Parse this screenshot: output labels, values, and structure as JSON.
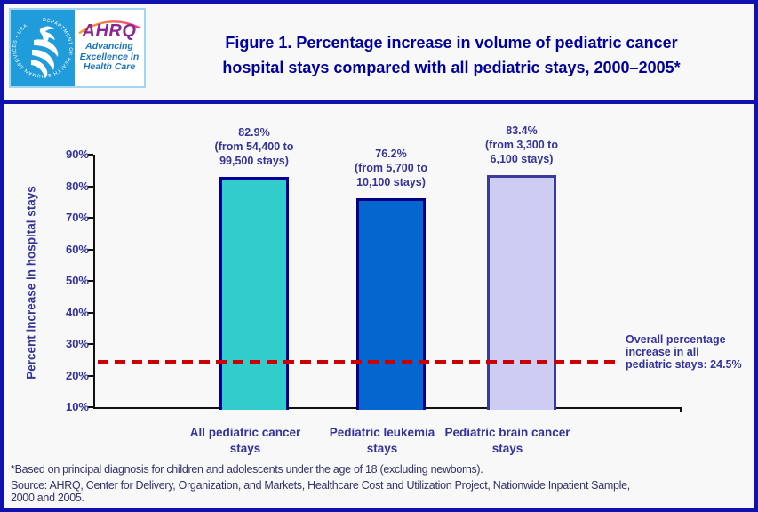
{
  "header": {
    "logo": {
      "hhs_ring_text": "DEPARTMENT OF HEALTH & HUMAN SERVICES • USA",
      "ahrq_acronym": "AHRQ",
      "ahrq_tagline": "Advancing\nExcellence in\nHealth Care"
    },
    "title": "Figure 1. Percentage increase in volume of pediatric cancer\nhospital stays compared with all pediatric stays, 2000–2005*"
  },
  "chart_data": {
    "type": "bar",
    "title": "Figure 1. Percentage increase in volume of pediatric cancer hospital stays compared with all pediatric stays, 2000–2005*",
    "ylabel": "Percent increase in hospital stays",
    "xlabel": "",
    "ylim": [
      10,
      90
    ],
    "ytick_step": 10,
    "ytick_labels": [
      "90%",
      "80%",
      "70%",
      "60%",
      "50%",
      "40%",
      "30%",
      "20%",
      "10%"
    ],
    "grid": false,
    "legend": false,
    "categories": [
      "All pediatric cancer\nstays",
      "Pediatric leukemia\nstays",
      "Pediatric brain cancer\nstays"
    ],
    "values": [
      82.9,
      76.2,
      83.4
    ],
    "bar_value_labels": [
      "82.9%\n(from 54,400 to\n99,500 stays)",
      "76.2%\n(from 5,700 to\n10,100 stays)",
      "83.4%\n(from 3,300 to\n6,100 stays)"
    ],
    "bar_fill_colors": [
      "#33CCCC",
      "#0566CF",
      "#CDCDF4"
    ],
    "bar_border_colors": [
      "#000099",
      "#000080",
      "#3A3A9E"
    ],
    "reference_line": {
      "value": 24.5,
      "style": "dashed",
      "color": "#CC0000",
      "annotation": "Overall percentage\nincrease in all\npediatric stays: 24.5%"
    }
  },
  "footer": {
    "footnote": "*Based on principal diagnosis for children and adolescents under the age of 18 (excluding newborns).",
    "source": "Source: AHRQ, Center for Delivery, Organization, and Markets, Healthcare Cost and Utilization Project, Nationwide Inpatient Sample,\n2000 and 2005."
  }
}
